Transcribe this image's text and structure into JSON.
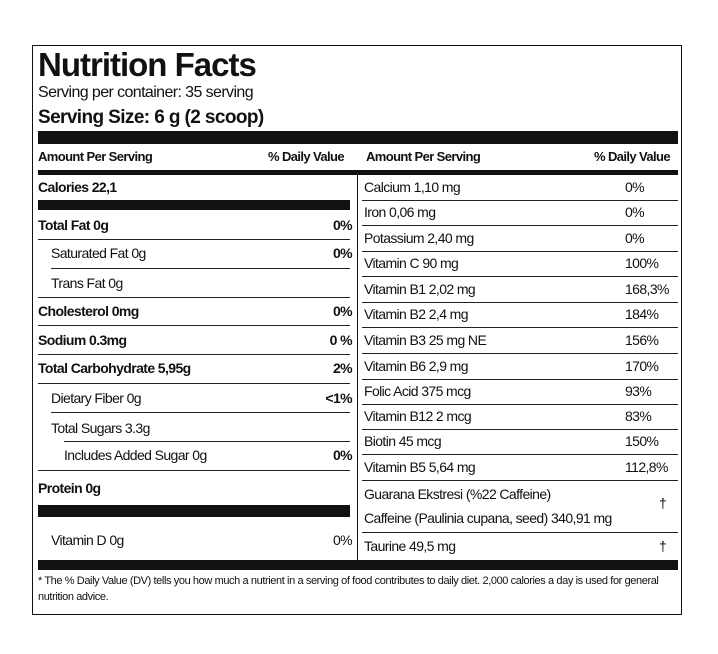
{
  "header": {
    "title": "Nutrition Facts",
    "servings_per_container": "Serving per container: 35 serving",
    "serving_size": "Serving Size: 6 g (2 scoop)"
  },
  "left": {
    "column_headers": [
      "Amount Per Serving",
      "% Daily Value"
    ],
    "calories": "Calories  22,1",
    "rows": [
      {
        "name": "Total Fat  0g",
        "dv": "0%"
      },
      {
        "name": "Saturated Fat  0g",
        "dv": "0%"
      },
      {
        "name": "Trans Fat 0g"
      },
      {
        "name": "Cholesterol 0mg",
        "dv": "0%"
      },
      {
        "name": "Sodium 0.3mg",
        "dv": "0 %"
      },
      {
        "name": "Total Carbohydrate  5,95g",
        "dv": "2%"
      },
      {
        "name": "Dietary Fiber 0g",
        "dv": "<1%"
      },
      {
        "name": "Total Sugars 3.3g"
      },
      {
        "name": "Includes Added Sugar 0g",
        "dv": "0%"
      },
      {
        "name": "Protein 0g"
      },
      {
        "name": "Vitamin D 0g",
        "dv": "0%"
      }
    ]
  },
  "right": {
    "column_headers": [
      "Amount Per Serving",
      "% Daily Value"
    ],
    "rows": [
      {
        "name": "Calcium 1,10 mg",
        "dv": "0%"
      },
      {
        "name": "Iron 0,06 mg",
        "dv": "0%"
      },
      {
        "name": "Potassium 2,40 mg",
        "dv": "0%"
      },
      {
        "name": "Vitamin C 90 mg",
        "dv": "100%"
      },
      {
        "name": "Vitamin B1 2,02 mg",
        "dv": "168,3%"
      },
      {
        "name": "Vitamin B2 2,4 mg",
        "dv": "184%"
      },
      {
        "name": "Vitamin B3 25 mg NE",
        "dv": "156%"
      },
      {
        "name": "Vitamin B6 2,9 mg",
        "dv": "170%"
      },
      {
        "name": "Folic Acid 375 mcg",
        "dv": "93%"
      },
      {
        "name": "Vitamin B12 2 mcg",
        "dv": "83%"
      },
      {
        "name": "Biotin 45 mcg",
        "dv": "150%"
      },
      {
        "name": "Vitamin B5 5,64 mg",
        "dv": "112,8%"
      },
      {
        "name": "Guarana Ekstresi (%22 Caffeine)",
        "name_line2": "Caffeine (Paulinia cupana, seed) 340,91 mg",
        "dv": "†"
      },
      {
        "name": "Taurine 49,5 mg",
        "dv": "†"
      }
    ]
  },
  "footnote": "* The % Daily Value (DV) tells you how much a nutrient in a serving of food contributes to daily diet. 2,000 calories a day is used for general nutrition advice."
}
